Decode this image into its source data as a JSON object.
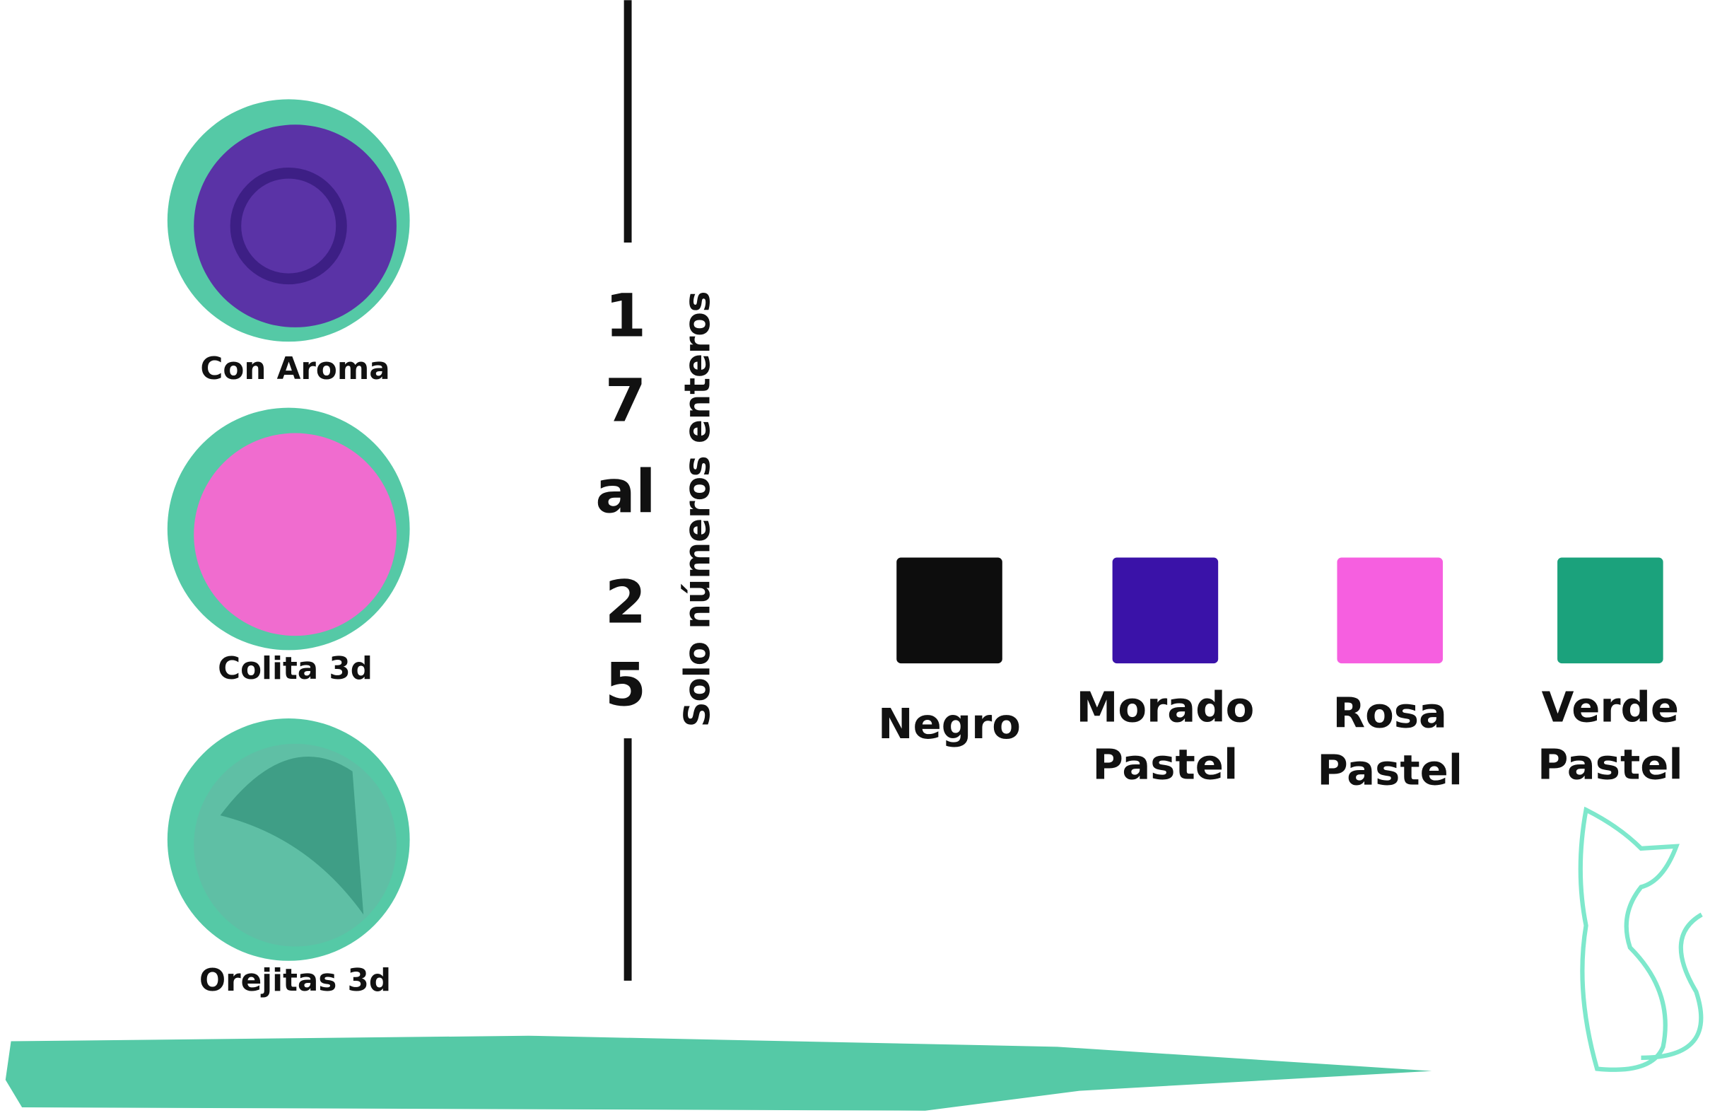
{
  "features": [
    {
      "label": "Con Aroma"
    },
    {
      "label": "Colita 3d"
    },
    {
      "label": "Orejitas 3d"
    }
  ],
  "sizes": {
    "lines": [
      "1",
      "7",
      "al",
      "2",
      "5"
    ],
    "note": "Solo números enteros"
  },
  "colors": [
    {
      "name": [
        "Negro"
      ],
      "color": "#0d0d0d"
    },
    {
      "name": [
        "Morado",
        "Pastel"
      ],
      "color": "#3a12a8"
    },
    {
      "name": [
        "Rosa",
        "Pastel"
      ],
      "color": "#f65fe0"
    },
    {
      "name": [
        "Verde",
        "Pastel"
      ],
      "color": "#1ba27c"
    }
  ]
}
